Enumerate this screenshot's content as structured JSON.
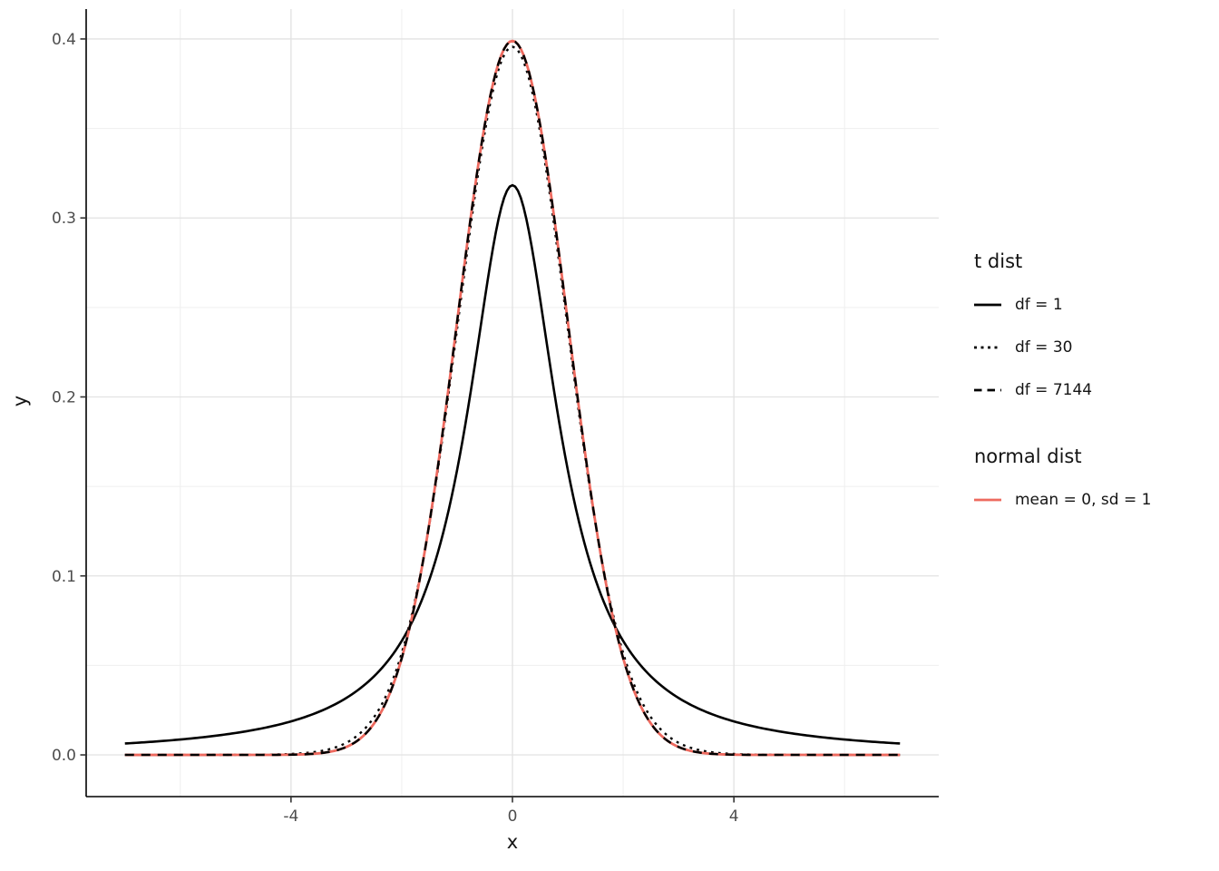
{
  "chart_data": {
    "type": "line",
    "title": "",
    "xlabel": "x",
    "ylabel": "y",
    "x_data_range": [
      -7,
      7
    ],
    "xlim": [
      -7.7,
      7.7
    ],
    "ylim": [
      -0.0233,
      0.4167
    ],
    "sample_step": 0.05,
    "grid": true,
    "legend_position": "right",
    "x_ticks": {
      "values": [
        -4,
        0,
        4
      ],
      "labels": [
        "-4",
        "0",
        "4"
      ],
      "minor": [
        -6,
        -2,
        2,
        6
      ]
    },
    "y_ticks": {
      "values": [
        0,
        0.1,
        0.2,
        0.3,
        0.4
      ],
      "labels": [
        "0.0",
        "0.1",
        "0.2",
        "0.3",
        "0.4"
      ],
      "minor": [
        0.05,
        0.15,
        0.25,
        0.35
      ]
    },
    "series": [
      {
        "name": "df = 1",
        "group": "t dist",
        "distribution": "t",
        "df": 1,
        "color": "#000000",
        "dash": "solid",
        "peak_y": 0.3183
      },
      {
        "name": "df = 30",
        "group": "t dist",
        "distribution": "t",
        "df": 30,
        "color": "#000000",
        "dash": "dotted",
        "peak_y": 0.3956
      },
      {
        "name": "df = 7144",
        "group": "t dist",
        "distribution": "t",
        "df": 7144,
        "color": "#000000",
        "dash": "longdash",
        "peak_y": 0.3989
      },
      {
        "name": "mean = 0, sd = 1",
        "group": "normal dist",
        "distribution": "normal",
        "mean": 0,
        "sd": 1,
        "color": "#EE6A5F",
        "dash": "solid",
        "peak_y": 0.3989
      }
    ],
    "draw_order": [
      0,
      1,
      3,
      2
    ]
  },
  "legend": {
    "groups": [
      {
        "title": "t dist",
        "entries": [
          {
            "label": "df = 1",
            "series": 0
          },
          {
            "label": "df = 30",
            "series": 1
          },
          {
            "label": "df = 7144",
            "series": 2
          }
        ]
      },
      {
        "title": "normal dist",
        "entries": [
          {
            "label": "mean = 0, sd = 1",
            "series": 3
          }
        ]
      }
    ]
  },
  "colors": {
    "grid_major": "#e2e2e2",
    "grid_minor": "#efefef",
    "axis_line": "#000000",
    "tick_label": "#4d4d4d"
  }
}
